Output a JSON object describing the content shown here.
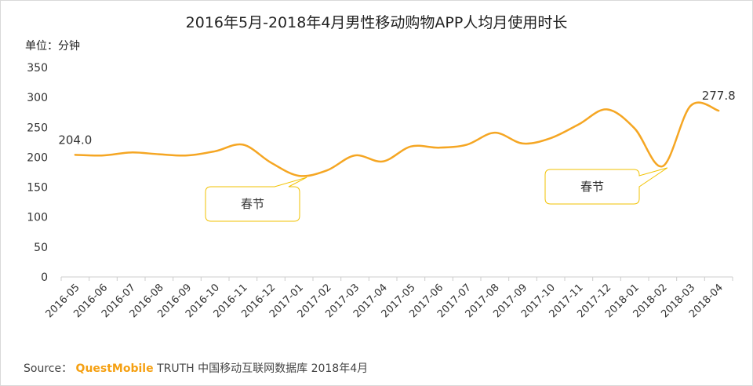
{
  "title": "2016年5月-2018年4月男性移动购物APP人均月使用时长",
  "unit_label": "单位：分钟",
  "source": {
    "prefix": "Source：",
    "brand": "QuestMobile",
    "suffix": "TRUTH 中国移动互联网数据库 2018年4月"
  },
  "chart_data": {
    "type": "line",
    "title": "2016年5月-2018年4月男性移动购物APP人均月使用时长",
    "xlabel": "",
    "ylabel": "单位：分钟",
    "ylim": [
      0,
      350
    ],
    "yticks": [
      0,
      50,
      100,
      150,
      200,
      250,
      300,
      350
    ],
    "grid": false,
    "categories": [
      "2016-05",
      "2016-06",
      "2016-07",
      "2016-08",
      "2016-09",
      "2016-10",
      "2016-11",
      "2016-12",
      "2017-01",
      "2017-02",
      "2017-03",
      "2017-04",
      "2017-05",
      "2017-06",
      "2017-07",
      "2017-08",
      "2017-09",
      "2017-10",
      "2017-11",
      "2017-12",
      "2018-01",
      "2018-02",
      "2018-03",
      "2018-04"
    ],
    "series": [
      {
        "name": "",
        "color": "#f5a623",
        "values": [
          204.0,
          203,
          208,
          205,
          203,
          210,
          221,
          191,
          169,
          178,
          203,
          193,
          218,
          216,
          221,
          241,
          223,
          232,
          255,
          280,
          248,
          185,
          286,
          277.8
        ]
      }
    ],
    "data_labels": [
      {
        "index": 0,
        "text": "204.0"
      },
      {
        "index": 23,
        "text": "277.8"
      }
    ],
    "annotations": [
      {
        "text": "春节",
        "point_index": 8
      },
      {
        "text": "春节",
        "point_index": 21
      }
    ]
  }
}
